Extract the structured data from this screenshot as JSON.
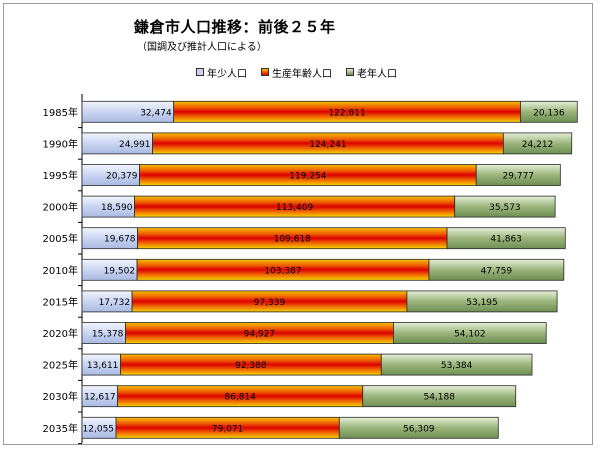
{
  "chart_data": {
    "type": "bar",
    "orientation": "horizontal",
    "stacked": true,
    "title": "鎌倉市人口推移：前後２５年",
    "subtitle": "（国調及び推計人口による）",
    "legend_position": "top",
    "categories": [
      "1985年",
      "1990年",
      "1995年",
      "2000年",
      "2005年",
      "2010年",
      "2015年",
      "2020年",
      "2025年",
      "2030年",
      "2035年"
    ],
    "series": [
      {
        "name": "年少人口",
        "color": "#c6d3f0",
        "values": [
          32474,
          24991,
          20379,
          18590,
          19678,
          19502,
          17732,
          15378,
          13611,
          12617,
          12055
        ],
        "labels": [
          "32,474",
          "24,991",
          "20,379",
          "18,590",
          "19,678",
          "19,502",
          "17,732",
          "15,378",
          "13,611",
          "12,617",
          "12,055"
        ]
      },
      {
        "name": "生産年齢人口",
        "color": "#e84000",
        "values": [
          122811,
          124241,
          119254,
          113409,
          109618,
          103387,
          97339,
          94927,
          92388,
          86814,
          79071
        ],
        "labels": [
          "122,811",
          "124,241",
          "119,254",
          "113,409",
          "109,618",
          "103,387",
          "97,339",
          "94,927",
          "92,388",
          "86,814",
          "79,071"
        ]
      },
      {
        "name": "老年人口",
        "color": "#8aaa6a",
        "values": [
          20136,
          24212,
          29777,
          35573,
          41863,
          47759,
          53195,
          54102,
          53384,
          54188,
          56309
        ],
        "labels": [
          "20,136",
          "24,212",
          "29,777",
          "35,573",
          "41,863",
          "47,759",
          "53,195",
          "54,102",
          "53,384",
          "54,188",
          "56,309"
        ]
      }
    ],
    "xlim": [
      0,
      180000
    ],
    "grid": false
  }
}
